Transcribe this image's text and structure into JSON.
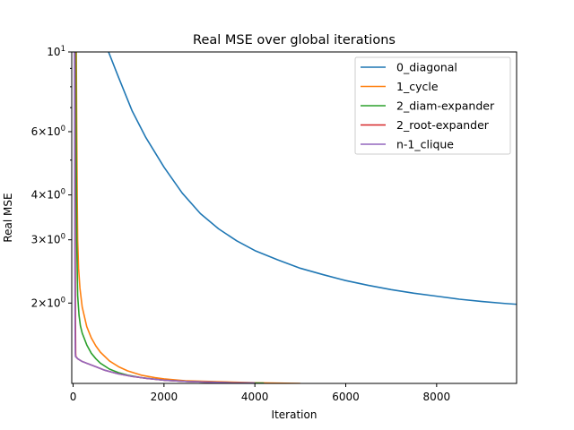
{
  "chart_data": {
    "type": "line",
    "title": "Real MSE over global iterations",
    "xlabel": "Iteration",
    "ylabel": "Real MSE",
    "y_scale": "log",
    "xlim": [
      -30,
      9760
    ],
    "ylim": [
      1.195,
      10
    ],
    "x_ticks": [
      0,
      2000,
      4000,
      6000,
      8000
    ],
    "x_tick_labels": [
      "0",
      "2000",
      "4000",
      "6000",
      "8000"
    ],
    "y_ticks": [
      {
        "value": 10,
        "base": "10",
        "exp": "1"
      },
      {
        "value": 6,
        "base": "6×10",
        "exp": "0"
      },
      {
        "value": 4,
        "base": "4×10",
        "exp": "0"
      },
      {
        "value": 3,
        "base": "3×10",
        "exp": "0"
      },
      {
        "value": 2,
        "base": "2×10",
        "exp": "0"
      }
    ],
    "y_minor_ticks": [
      5,
      7,
      8,
      9
    ],
    "grid": false,
    "legend_position": "top-right",
    "series": [
      {
        "name": "0_diagonal",
        "color": "#1f77b4",
        "x": [
          780,
          1000,
          1300,
          1600,
          2000,
          2400,
          2800,
          3200,
          3600,
          4000,
          4500,
          5000,
          5500,
          6000,
          6500,
          7000,
          7500,
          8000,
          8500,
          9000,
          9500,
          9750
        ],
        "y": [
          10.0,
          8.5,
          6.85,
          5.78,
          4.78,
          4.05,
          3.55,
          3.22,
          2.98,
          2.8,
          2.64,
          2.5,
          2.4,
          2.31,
          2.24,
          2.18,
          2.13,
          2.09,
          2.05,
          2.02,
          1.995,
          1.985
        ]
      },
      {
        "name": "1_cycle",
        "color": "#ff7f0e",
        "x": [
          70,
          80,
          90,
          100,
          120,
          150,
          200,
          300,
          400,
          500,
          600,
          800,
          1000,
          1200,
          1500,
          1800,
          2000,
          2500,
          3000,
          3500,
          4000,
          4500,
          5000
        ],
        "y": [
          10.0,
          6.0,
          4.0,
          3.0,
          2.5,
          2.2,
          1.95,
          1.72,
          1.6,
          1.52,
          1.46,
          1.38,
          1.33,
          1.295,
          1.26,
          1.24,
          1.23,
          1.215,
          1.21,
          1.205,
          1.2,
          1.197,
          1.195
        ]
      },
      {
        "name": "2_diam-expander",
        "color": "#2ca02c",
        "x": [
          60,
          70,
          80,
          100,
          130,
          160,
          200,
          300,
          400,
          500,
          600,
          800,
          1000,
          1200,
          1500,
          2000,
          2500,
          3000,
          3500,
          4000,
          4200
        ],
        "y": [
          10.0,
          5.0,
          3.0,
          2.1,
          1.85,
          1.73,
          1.65,
          1.53,
          1.45,
          1.4,
          1.36,
          1.31,
          1.28,
          1.26,
          1.24,
          1.22,
          1.21,
          1.205,
          1.2,
          1.198,
          1.197
        ]
      },
      {
        "name": "2_root-expander",
        "color": "#d62728",
        "x": [
          40,
          42,
          45,
          48,
          52,
          56,
          60,
          80,
          100,
          200,
          300,
          500,
          700,
          1000,
          1300,
          1600,
          2000,
          2500,
          3000,
          3500,
          4000
        ],
        "y": [
          10.0,
          7.0,
          4.0,
          2.5,
          1.75,
          1.45,
          1.42,
          1.41,
          1.4,
          1.375,
          1.36,
          1.33,
          1.3,
          1.27,
          1.25,
          1.235,
          1.22,
          1.21,
          1.205,
          1.2,
          1.198
        ]
      },
      {
        "name": "n-1_clique",
        "color": "#9467bd",
        "x": [
          30,
          33,
          36,
          40,
          44,
          48,
          52,
          60,
          80,
          100,
          200,
          300,
          500,
          700,
          1000,
          1300,
          1600,
          2000,
          2500,
          3000,
          3500,
          4000
        ],
        "y": [
          10.0,
          7.0,
          4.0,
          2.4,
          1.7,
          1.45,
          1.42,
          1.415,
          1.41,
          1.4,
          1.375,
          1.36,
          1.33,
          1.3,
          1.27,
          1.25,
          1.235,
          1.22,
          1.21,
          1.205,
          1.2,
          1.198
        ]
      }
    ]
  }
}
